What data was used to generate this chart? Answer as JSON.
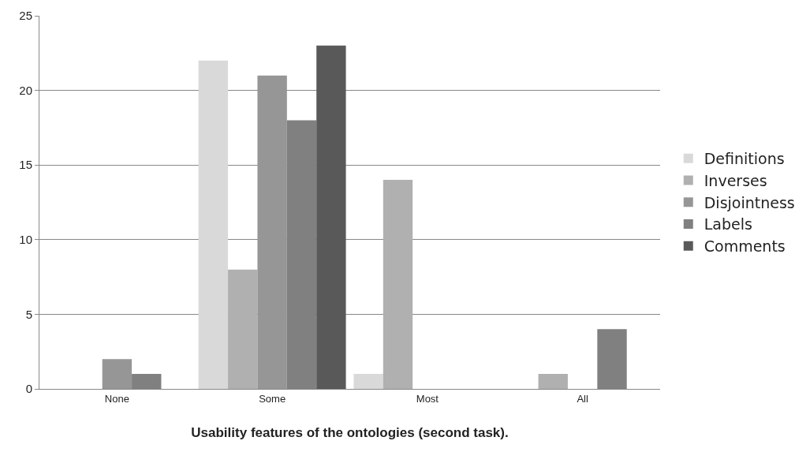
{
  "chart_data": {
    "type": "bar",
    "xlabel": "Usability features of the ontologies (second task).",
    "categories": [
      "None",
      "Some",
      "Most",
      "All"
    ],
    "series": [
      {
        "name": "Definitions",
        "color": "#d9d9d9",
        "values": [
          0,
          22,
          1,
          0
        ]
      },
      {
        "name": "Inverses",
        "color": "#b0b0b0",
        "values": [
          0,
          8,
          14,
          1
        ]
      },
      {
        "name": "Disjointness",
        "color": "#969696",
        "values": [
          2,
          21,
          0,
          0
        ]
      },
      {
        "name": "Labels",
        "color": "#808080",
        "values": [
          1,
          18,
          0,
          4
        ]
      },
      {
        "name": "Comments",
        "color": "#595959",
        "values": [
          0,
          23,
          0,
          0
        ]
      }
    ],
    "ylim": [
      0,
      25
    ],
    "yticks": [
      0,
      5,
      10,
      15,
      20,
      25
    ],
    "grid": "y",
    "legend": "right"
  }
}
